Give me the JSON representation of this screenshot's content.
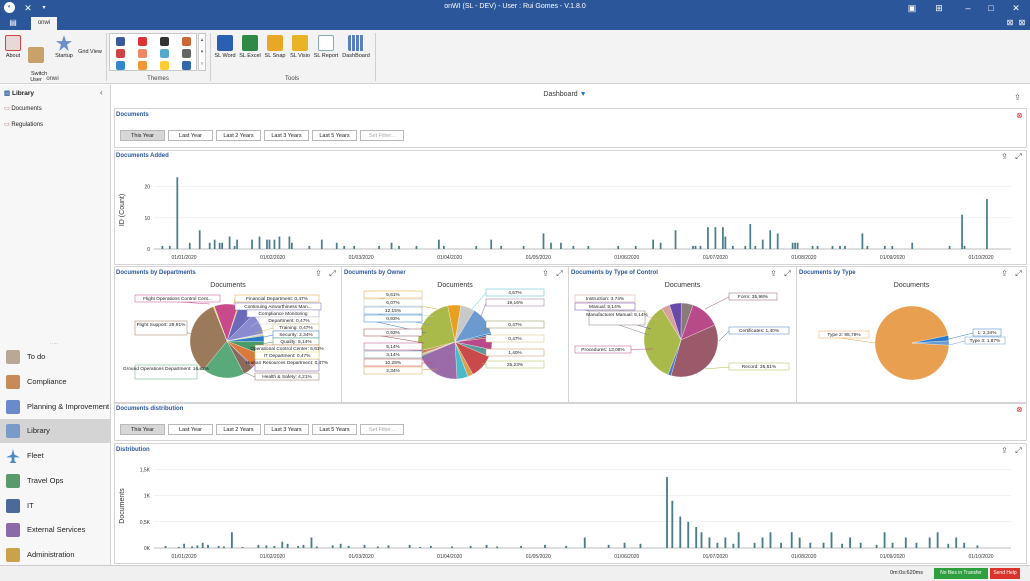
{
  "window": {
    "title": "onWI (SL - DEV) - User : Rui Gomes - V.1.8.0"
  },
  "tabs": [
    {
      "label": "onwi"
    }
  ],
  "ribbon": {
    "about": "About",
    "switch_user": "Switch\nUser",
    "startup": "Startup",
    "grid_view": "Grid View",
    "group_onwi": "onwi",
    "group_themes": "Themes",
    "group_tools": "Tools",
    "tools": [
      "SL Word",
      "SL Excel",
      "SL Snap",
      "SL Visio",
      "SL Report",
      "DashBoard"
    ]
  },
  "sidebar": {
    "header": "Library",
    "library_items": [
      "Documents",
      "Regulations"
    ],
    "nav": [
      "To do",
      "Compliance",
      "Planning & Improvement",
      "Library",
      "Fleet",
      "Travel Ops",
      "IT",
      "External Services",
      "Administration"
    ],
    "active": "Library"
  },
  "dashboard": {
    "title": "Dashboard"
  },
  "filters1": {
    "title": "Documents",
    "buttons": [
      "This Year",
      "Last Year",
      "Last 2 Years",
      "Last 3 Years",
      "Last 5 Years",
      "Set Filter..."
    ]
  },
  "filters2": {
    "title": "Documents distribution",
    "buttons": [
      "This Year",
      "Last Year",
      "Last 2 Years",
      "Last 3 Years",
      "Last 5 Years",
      "Set Filter..."
    ]
  },
  "panels": {
    "added": "Documents Added",
    "by_dept": "Documents by Departments",
    "by_owner": "Documents by Owner",
    "by_control": "Documents by Type of Control",
    "by_type": "Documents by Type",
    "distribution": "Distribution"
  },
  "chart_data": [
    {
      "type": "bar",
      "title": "",
      "ylabel": "ID (Count)",
      "ylim": [
        0,
        25
      ],
      "yticks": [
        "0",
        "10",
        "20"
      ],
      "x_ticks": [
        "01/01/2020",
        "01/02/2020",
        "01/03/2020",
        "01/04/2020",
        "01/05/2020",
        "01/06/2020",
        "01/07/2020",
        "01/08/2020",
        "01/09/2020",
        "01/10/2020"
      ],
      "values": [
        0,
        0,
        0,
        1,
        0,
        0,
        1,
        0,
        0,
        23,
        0,
        0,
        0,
        0,
        2,
        0,
        0,
        0,
        6,
        0,
        0,
        0,
        2,
        0,
        3,
        0,
        2,
        2,
        0,
        0,
        4,
        0,
        1,
        3,
        0,
        0,
        0,
        0,
        0,
        3,
        0,
        0,
        4,
        0,
        0,
        3,
        3,
        0,
        3,
        0,
        4,
        0,
        0,
        0,
        4,
        2,
        0,
        0,
        0,
        0,
        0,
        0,
        1,
        0,
        0,
        0,
        0,
        3,
        0,
        0,
        0,
        0,
        0,
        2,
        0,
        0,
        1,
        0,
        0,
        0,
        1,
        0,
        0,
        0,
        0,
        0,
        0,
        0,
        0,
        0,
        1,
        0,
        0,
        0,
        0,
        2,
        0,
        0,
        1,
        0,
        0,
        0,
        0,
        0,
        0,
        1,
        0,
        0,
        0,
        0,
        0,
        0,
        0,
        0,
        3,
        0,
        1,
        0,
        0,
        0,
        0,
        0,
        0,
        0,
        0,
        0,
        0,
        0,
        0,
        1,
        0,
        0,
        0,
        0,
        0,
        3,
        0,
        0,
        0,
        1,
        0,
        0,
        0,
        0,
        0,
        0,
        0,
        0,
        1,
        0,
        0,
        0,
        0,
        0,
        0,
        0,
        5,
        0,
        0,
        2,
        0,
        0,
        0,
        2,
        0,
        0,
        0,
        0,
        1,
        0,
        0,
        0,
        0,
        0,
        1,
        0,
        0,
        0,
        0,
        0,
        0,
        0,
        0,
        0,
        0,
        0,
        1,
        0,
        0,
        0,
        0,
        0,
        0,
        1,
        0,
        0,
        0,
        0,
        0,
        0,
        3,
        0,
        0,
        2,
        0,
        0,
        0,
        0,
        0,
        6,
        0,
        0,
        0,
        0,
        0,
        0,
        1,
        1,
        0,
        1,
        0,
        0,
        7,
        0,
        0,
        7,
        0,
        0,
        7,
        4,
        0,
        0,
        1,
        0,
        0,
        0,
        0,
        1,
        0,
        8,
        0,
        1,
        0,
        0,
        3,
        0,
        0,
        6,
        0,
        0,
        5,
        0,
        0,
        0,
        0,
        0,
        2,
        2,
        2,
        0,
        0,
        0,
        0,
        0,
        1,
        0,
        1,
        0,
        0,
        0,
        0,
        0,
        1,
        0,
        0,
        1,
        0,
        1,
        0,
        0,
        0,
        0,
        0,
        0,
        5,
        0,
        1,
        0,
        0,
        0,
        0,
        0,
        0,
        1,
        0,
        0,
        1,
        0,
        0,
        0,
        0,
        0,
        0,
        0,
        2,
        0,
        0,
        0,
        0,
        0,
        0,
        0,
        0,
        0,
        0,
        0,
        0,
        0,
        0,
        1,
        0,
        0,
        0,
        0,
        11,
        1,
        0,
        0,
        0,
        0,
        0,
        0,
        0,
        0,
        16,
        0,
        0,
        0,
        0,
        0,
        0,
        0,
        0,
        0
      ]
    },
    {
      "type": "pie",
      "title": "Documents",
      "labels": [
        "Flight Operations Control Cent...",
        "Financial Department: 0,47%",
        "Continuing Airworthiness Man...",
        "Compliance Monitoring",
        "Department: 0,47%",
        "Training: 0,47%",
        "Security: 2,34%",
        "Quality: 5,14%",
        "Operational Control Center: 5,61%",
        "Human Resources Department: 0,47%",
        "Health & Safety: 4,21%",
        "Ground Operations Department: 16,82%",
        "Flight Support: 29,91%",
        "IT Department: 0,47%"
      ],
      "values": [
        9.35,
        0.47,
        6.54,
        8.41,
        0.47,
        0.47,
        2.34,
        5.14,
        5.61,
        0.47,
        4.21,
        16.82,
        29.91,
        0.47
      ]
    },
    {
      "type": "pie",
      "title": "Documents",
      "labels": [
        "5,61%",
        "6,07%",
        "12,15%",
        "0,93%",
        "0,93%",
        "5,14%",
        "3,14%",
        "10,28%",
        "2,34%",
        "4,67%",
        "19,16%",
        "0,47%",
        "0,47%",
        "1,40%",
        "25,23%"
      ],
      "values": [
        5.61,
        6.07,
        12.15,
        0.93,
        0.93,
        5.14,
        3.14,
        10.28,
        2.34,
        4.67,
        19.16,
        0.47,
        0.47,
        1.4,
        25.23
      ]
    },
    {
      "type": "pie",
      "title": "Documents",
      "labels": [
        "Instruction: 3,74%",
        "Manual: 5,14%",
        "Manufacturer Manual: 5,14%",
        "Procedures: 13,08%",
        "Form: 35,98%",
        "Certificates: 1,40%",
        "Record: 35,51%"
      ],
      "values": [
        3.74,
        5.14,
        5.14,
        13.08,
        35.98,
        1.4,
        35.51
      ]
    },
    {
      "type": "pie",
      "title": "Documents",
      "labels": [
        "Type 2: 95,79%",
        "1: 2,34%",
        "Type 3: 1,87%"
      ],
      "values": [
        95.79,
        2.34,
        1.87
      ]
    },
    {
      "type": "bar",
      "title": "",
      "ylabel": "Documents",
      "ylim": [
        0,
        1600
      ],
      "yticks": [
        "0K",
        "0,5K",
        "1K",
        "1,5K"
      ],
      "x_ticks": [
        "01/01/2020",
        "01/02/2020",
        "01/03/2020",
        "01/04/2020",
        "01/05/2020",
        "01/06/2020",
        "01/07/2020",
        "01/08/2020",
        "01/09/2020",
        "01/10/2020"
      ],
      "values": [
        0,
        0,
        0,
        0,
        40,
        0,
        0,
        0,
        0,
        20,
        0,
        80,
        0,
        0,
        30,
        0,
        50,
        0,
        100,
        0,
        60,
        0,
        0,
        0,
        40,
        0,
        30,
        0,
        0,
        300,
        0,
        0,
        0,
        20,
        0,
        0,
        0,
        0,
        0,
        60,
        0,
        0,
        50,
        0,
        0,
        40,
        0,
        0,
        120,
        0,
        80,
        0,
        0,
        0,
        40,
        0,
        60,
        0,
        0,
        200,
        0,
        30,
        0,
        0,
        0,
        0,
        0,
        50,
        0,
        0,
        80,
        0,
        0,
        40,
        0,
        0,
        0,
        0,
        0,
        60,
        0,
        0,
        0,
        0,
        30,
        0,
        0,
        0,
        50,
        0,
        0,
        0,
        0,
        0,
        0,
        0,
        60,
        0,
        0,
        0,
        20,
        0,
        0,
        0,
        40,
        0,
        0,
        0,
        0,
        0,
        0,
        0,
        30,
        0,
        0,
        0,
        0,
        0,
        0,
        40,
        0,
        0,
        0,
        0,
        0,
        60,
        0,
        0,
        0,
        30,
        0,
        0,
        0,
        0,
        0,
        0,
        0,
        0,
        40,
        0,
        0,
        0,
        0,
        0,
        0,
        0,
        0,
        60,
        0,
        0,
        0,
        0,
        0,
        0,
        0,
        40,
        0,
        0,
        0,
        0,
        0,
        0,
        200,
        0,
        0,
        0,
        0,
        0,
        0,
        0,
        0,
        60,
        0,
        0,
        0,
        0,
        0,
        100,
        0,
        0,
        0,
        0,
        0,
        80,
        0,
        0,
        0,
        0,
        0,
        0,
        0,
        0,
        0,
        1350,
        0,
        900,
        0,
        0,
        600,
        0,
        0,
        500,
        0,
        0,
        400,
        0,
        300,
        0,
        0,
        200,
        0,
        0,
        100,
        0,
        0,
        200,
        0,
        0,
        80,
        0,
        300,
        0,
        0,
        0,
        0,
        0,
        100,
        0,
        0,
        200,
        0,
        0,
        300,
        0,
        0,
        0,
        100,
        0,
        0,
        0,
        300,
        0,
        0,
        200,
        0,
        0,
        0,
        100,
        0,
        0,
        0,
        0,
        100,
        0,
        0,
        300,
        0,
        0,
        0,
        80,
        0,
        0,
        200,
        0,
        0,
        0,
        100,
        0,
        0,
        0,
        0,
        0,
        60,
        0,
        0,
        300,
        0,
        0,
        100,
        0,
        0,
        0,
        0,
        200,
        0,
        0,
        0,
        100,
        0,
        0,
        0,
        0,
        200,
        0,
        0,
        300,
        0,
        0,
        0,
        80,
        0,
        0,
        200,
        0,
        0,
        100,
        0,
        0,
        0,
        0,
        50,
        0,
        0,
        0,
        0,
        0,
        0,
        0,
        0,
        0,
        0,
        0,
        0
      ]
    }
  ],
  "status": {
    "time": "0m:0s:620ms",
    "transfer": "No files in Transfer",
    "help": "Send Help"
  },
  "colors": {
    "accent": "#2b579a",
    "bar": "#4a7d8c"
  }
}
